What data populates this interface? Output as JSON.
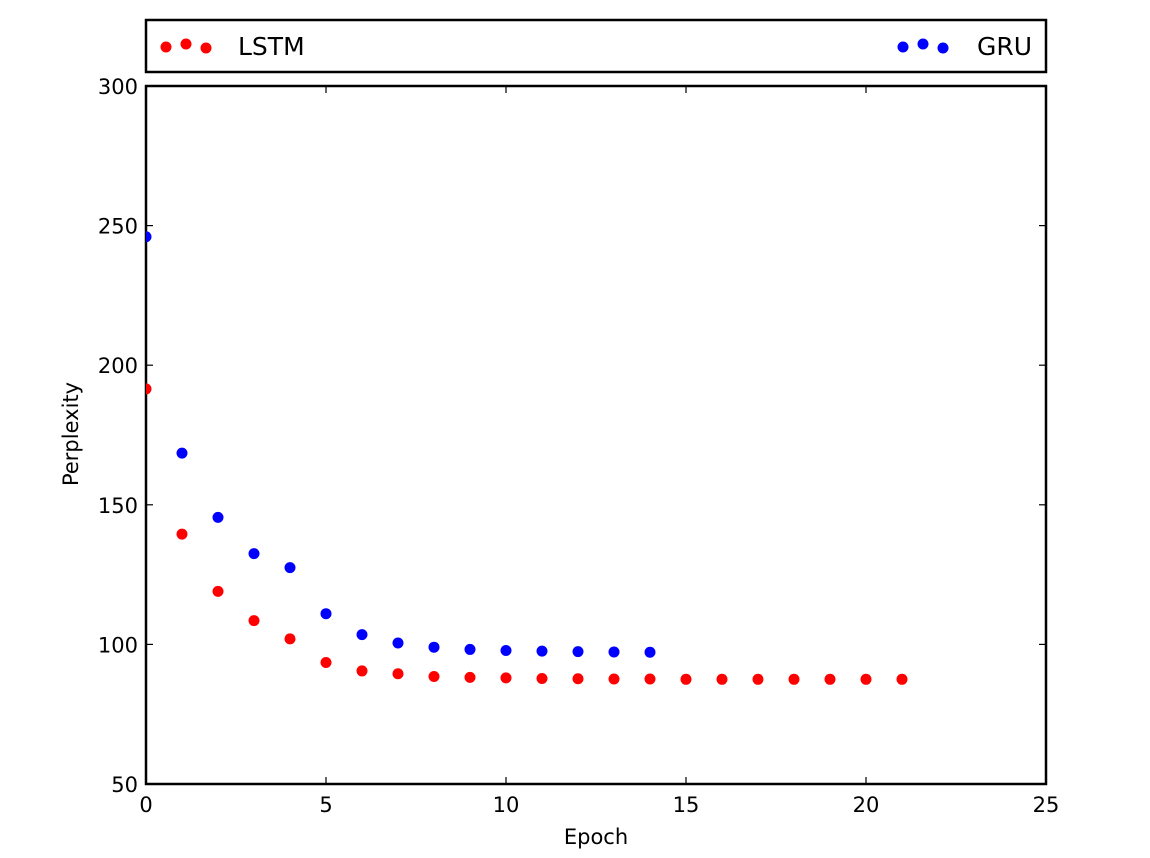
{
  "chart_data": {
    "type": "scatter",
    "xlabel": "Epoch",
    "ylabel": "Perplexity",
    "xlim": [
      0,
      25
    ],
    "ylim": [
      50,
      300
    ],
    "xticks": [
      0,
      5,
      10,
      15,
      20,
      25
    ],
    "yticks": [
      50,
      100,
      150,
      200,
      250,
      300
    ],
    "grid": false,
    "legend_placement": "top, outside plot area",
    "series": [
      {
        "name": "LSTM",
        "color": "#ff0000",
        "x": [
          0,
          1,
          2,
          3,
          4,
          5,
          6,
          7,
          8,
          9,
          10,
          11,
          12,
          13,
          14,
          15,
          16,
          17,
          18,
          19,
          20,
          21
        ],
        "values": [
          191.5,
          139.5,
          119.0,
          108.5,
          102.0,
          93.5,
          90.5,
          89.5,
          88.5,
          88.2,
          88.0,
          87.8,
          87.7,
          87.6,
          87.6,
          87.5,
          87.5,
          87.5,
          87.5,
          87.5,
          87.5,
          87.5
        ]
      },
      {
        "name": "GRU",
        "color": "#0000ff",
        "x": [
          0,
          1,
          2,
          3,
          4,
          5,
          6,
          7,
          8,
          9,
          10,
          11,
          12,
          13,
          14
        ],
        "values": [
          246.0,
          168.5,
          145.5,
          132.5,
          127.5,
          111.0,
          103.5,
          100.5,
          99.0,
          98.2,
          97.8,
          97.6,
          97.4,
          97.3,
          97.2
        ]
      }
    ]
  }
}
